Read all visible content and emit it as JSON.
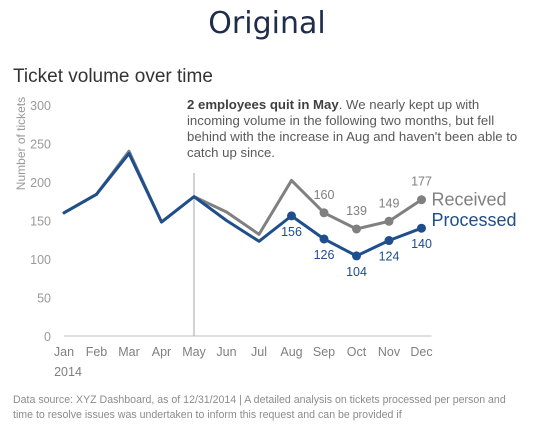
{
  "header": {
    "title": "Original"
  },
  "chart_data": {
    "type": "line",
    "title": "Ticket volume over time",
    "ylabel": "Number of tickets",
    "xlabel": "",
    "year_label": "2014",
    "ylim": [
      0,
      300
    ],
    "yticks": [
      0,
      50,
      100,
      150,
      200,
      250,
      300
    ],
    "categories": [
      "Jan",
      "Feb",
      "Mar",
      "Apr",
      "May",
      "Jun",
      "Jul",
      "Aug",
      "Sep",
      "Oct",
      "Nov",
      "Dec"
    ],
    "series": [
      {
        "name": "Received",
        "color": "#808080",
        "values": [
          160,
          184,
          240,
          148,
          181,
          161,
          132,
          202,
          160,
          139,
          149,
          177
        ],
        "labeled_from_index": 8
      },
      {
        "name": "Processed",
        "color": "#1f4e8c",
        "values": [
          160,
          184,
          237,
          148,
          181,
          150,
          123,
          156,
          126,
          104,
          124,
          140
        ],
        "labeled_from_index": 7
      }
    ],
    "marker_month_index": 4,
    "annotation": {
      "bold": "2 employees quit in May",
      "text": ". We nearly kept up with incoming volume in the following two months, but fell behind with the increase in Aug and haven't been able to catch up since."
    }
  },
  "footer": {
    "source": "Data source: XYZ Dashboard, as of 12/31/2014  |  A detailed analysis on tickets processed per person and time to resolve issues was undertaken to inform this request and can be provided if"
  }
}
